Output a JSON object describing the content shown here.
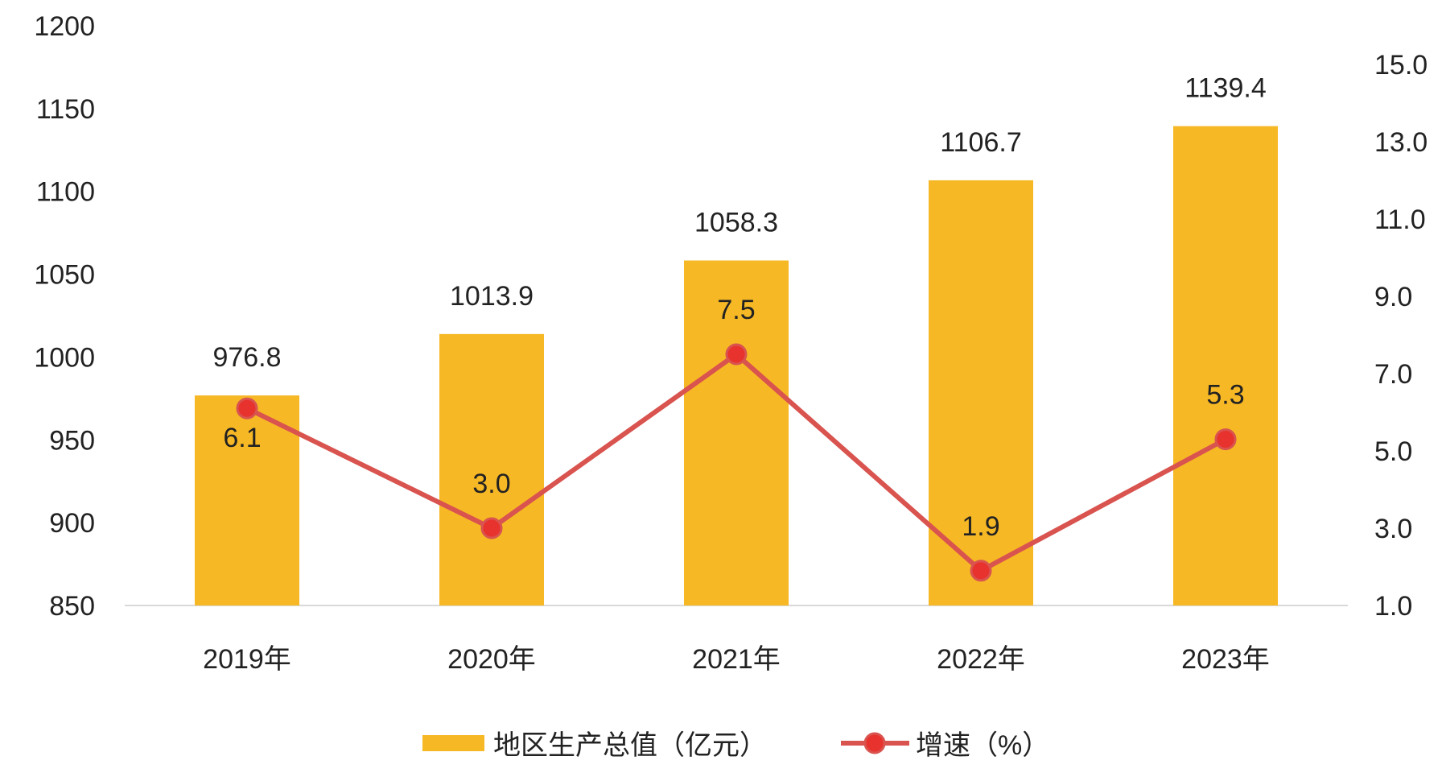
{
  "chart_data": {
    "type": "bar",
    "categories": [
      "2019年",
      "2020年",
      "2021年",
      "2022年",
      "2023年"
    ],
    "series": [
      {
        "name": "地区生产总值（亿元）",
        "type": "bar",
        "axis": "left",
        "color": "#F7B825",
        "values": [
          976.8,
          1013.9,
          1058.3,
          1106.7,
          1139.4
        ],
        "labels": [
          "976.8",
          "1013.9",
          "1058.3",
          "1106.7",
          "1139.4"
        ]
      },
      {
        "name": "增速（%）",
        "type": "line",
        "axis": "right",
        "color": "#D9534F",
        "marker_color": "#E8322D",
        "values": [
          6.1,
          3.0,
          7.5,
          1.9,
          5.3
        ],
        "labels": [
          "6.1",
          "3.0",
          "7.5",
          "1.9",
          "5.3"
        ]
      }
    ],
    "y_left": {
      "min": 850,
      "max": 1200,
      "ticks": [
        "850",
        "900",
        "950",
        "1000",
        "1050",
        "1100",
        "1150",
        "1200"
      ]
    },
    "y_right": {
      "min": 1.0,
      "max": 15.0,
      "ticks": [
        "1.0",
        "3.0",
        "5.0",
        "7.0",
        "9.0",
        "11.0",
        "13.0",
        "15.0"
      ]
    },
    "title": "",
    "xlabel": "",
    "ylabel": "",
    "grid": false,
    "legend": "bottom"
  }
}
